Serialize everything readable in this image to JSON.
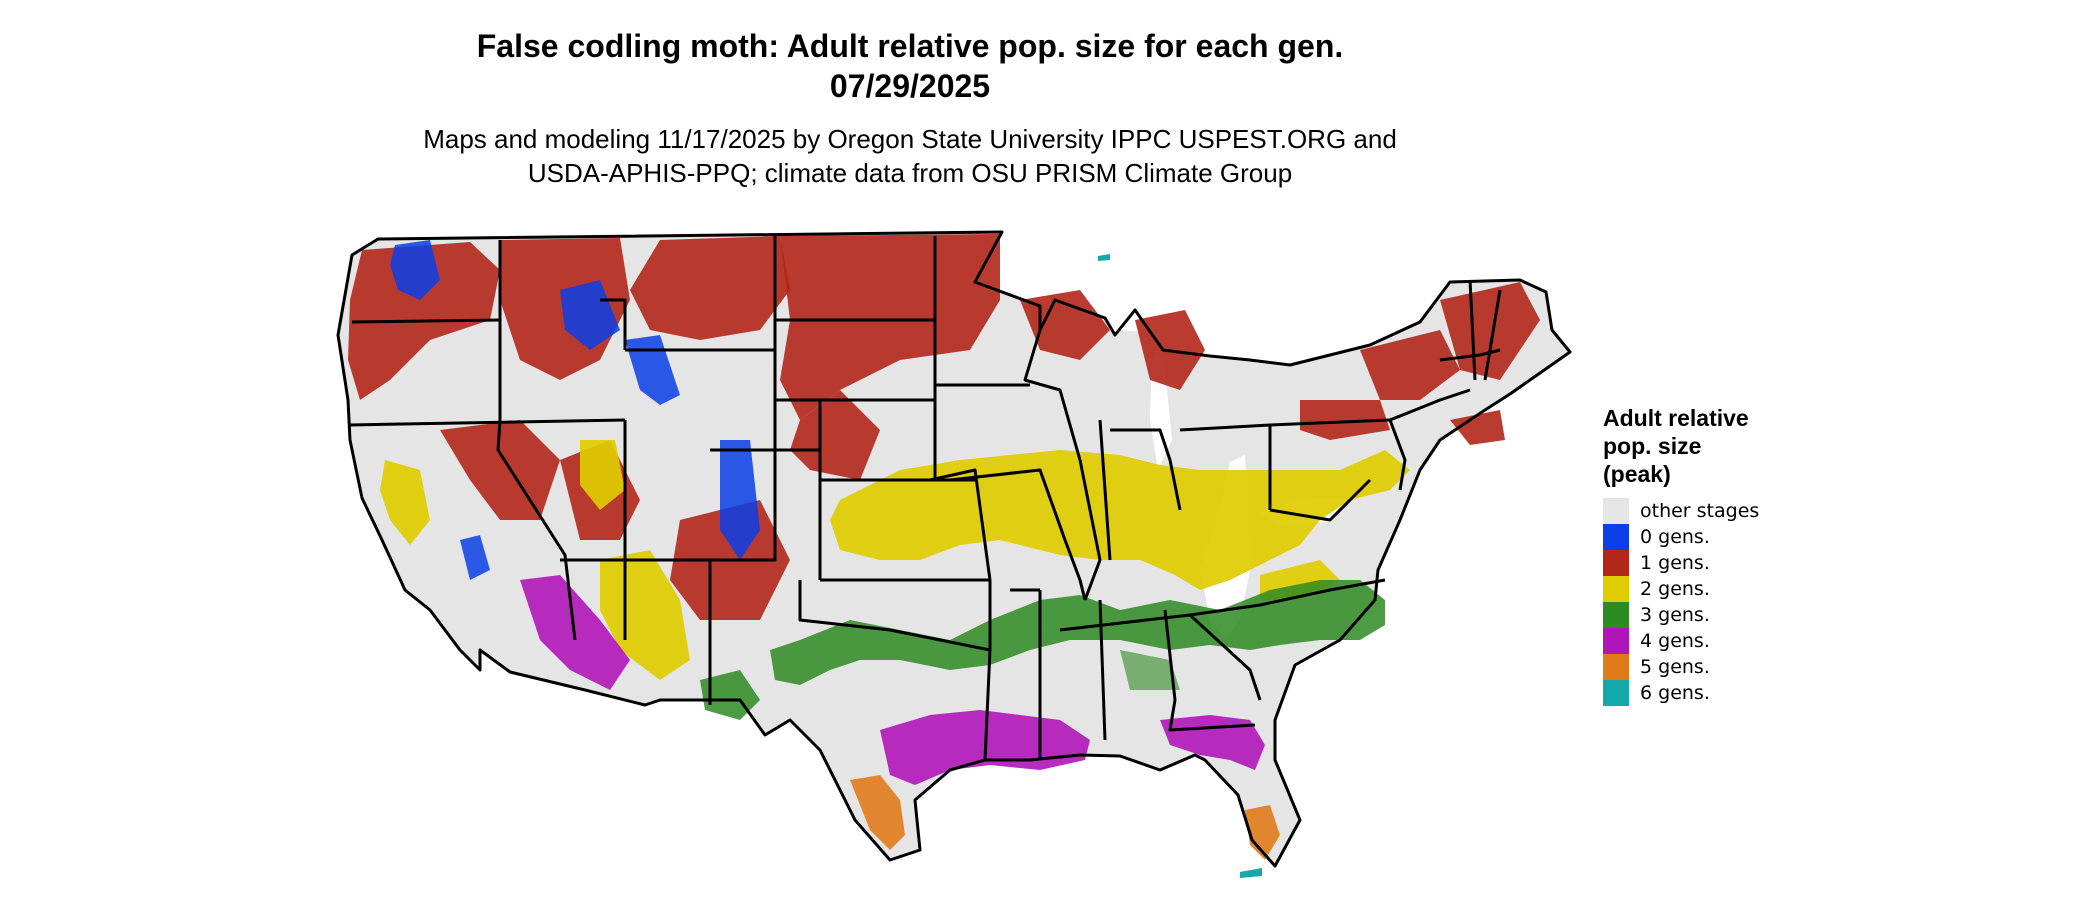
{
  "header": {
    "title_line1": "False codling moth: Adult relative pop. size for each gen.",
    "title_line2": "07/29/2025",
    "subtitle_line1": "Maps and modeling 11/17/2025 by Oregon State University IPPC USPEST.ORG and",
    "subtitle_line2": "USDA-APHIS-PPQ; climate data from OSU PRISM Climate Group"
  },
  "legend": {
    "title_line1": "Adult relative",
    "title_line2": "pop. size",
    "title_line3": "(peak)",
    "items": [
      {
        "label": "other stages",
        "color": "#e5e5e5"
      },
      {
        "label": "0 gens.",
        "color": "#0a3ee6"
      },
      {
        "label": "1 gens.",
        "color": "#b3261a"
      },
      {
        "label": "2 gens.",
        "color": "#e0cc00"
      },
      {
        "label": "3 gens.",
        "color": "#2e8b22"
      },
      {
        "label": "4 gens.",
        "color": "#b015b8"
      },
      {
        "label": "5 gens.",
        "color": "#e07b1a"
      },
      {
        "label": "6 gens.",
        "color": "#14a8a8"
      }
    ]
  }
}
